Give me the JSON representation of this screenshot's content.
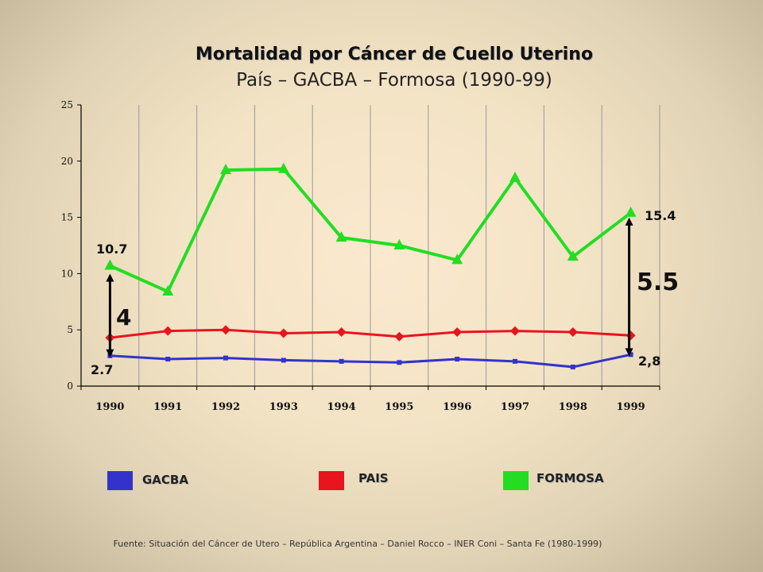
{
  "title": "Mortalidad por Cáncer de Cuello Uterino",
  "subtitle": "País – GACBA – Formosa (1990-99)",
  "source": "Fuente: Situación del Cáncer de Utero – República Argentina – Daniel Rocco – INER Coni – Santa Fe (1980-1999)",
  "annotations": {
    "formosa_1990": "10.7",
    "gacba_1990": "2.7",
    "diff_1990": "4",
    "formosa_1999": "15.4",
    "gacba_1999": "2,8",
    "diff_1999": "5.5"
  },
  "chart_data": {
    "type": "line",
    "categories": [
      "1990",
      "1991",
      "1992",
      "1993",
      "1994",
      "1995",
      "1996",
      "1997",
      "1998",
      "1999"
    ],
    "ylim": [
      0,
      25
    ],
    "yticks": [
      "0",
      "5",
      "10",
      "15",
      "20",
      "25"
    ],
    "grid": "vertical",
    "legend_position": "bottom",
    "series": [
      {
        "name": "GACBA",
        "color": "#3333cc",
        "marker": "square",
        "values": [
          2.7,
          2.4,
          2.5,
          2.3,
          2.2,
          2.1,
          2.4,
          2.2,
          1.7,
          2.8
        ]
      },
      {
        "name": "PAIS",
        "color": "#e8141e",
        "marker": "diamond",
        "values": [
          4.3,
          4.9,
          5.0,
          4.7,
          4.8,
          4.4,
          4.8,
          4.9,
          4.8,
          4.5
        ]
      },
      {
        "name": "FORMOSA",
        "color": "#22dd22",
        "marker": "triangle",
        "values": [
          10.7,
          8.4,
          19.2,
          19.3,
          13.2,
          12.5,
          11.2,
          18.5,
          11.5,
          15.4
        ]
      }
    ]
  }
}
